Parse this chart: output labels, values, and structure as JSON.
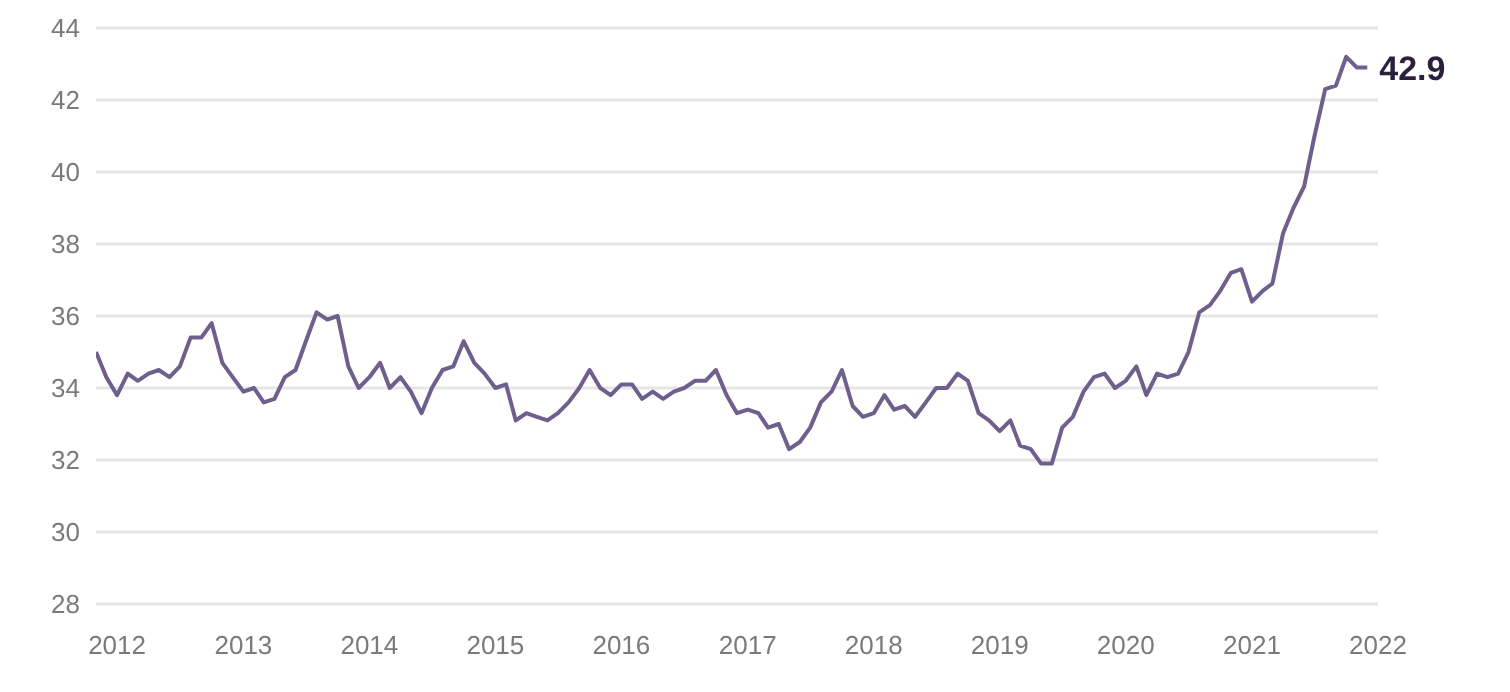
{
  "chart_data": {
    "type": "line",
    "x": [
      "2011-11",
      "2011-12",
      "2012-01",
      "2012-02",
      "2012-03",
      "2012-04",
      "2012-05",
      "2012-06",
      "2012-07",
      "2012-08",
      "2012-09",
      "2012-10",
      "2012-11",
      "2012-12",
      "2013-01",
      "2013-02",
      "2013-03",
      "2013-04",
      "2013-05",
      "2013-06",
      "2013-07",
      "2013-08",
      "2013-09",
      "2013-10",
      "2013-11",
      "2013-12",
      "2014-01",
      "2014-02",
      "2014-03",
      "2014-04",
      "2014-05",
      "2014-06",
      "2014-07",
      "2014-08",
      "2014-09",
      "2014-10",
      "2014-11",
      "2014-12",
      "2015-01",
      "2015-02",
      "2015-03",
      "2015-04",
      "2015-05",
      "2015-06",
      "2015-07",
      "2015-08",
      "2015-09",
      "2015-10",
      "2015-11",
      "2015-12",
      "2016-01",
      "2016-02",
      "2016-03",
      "2016-04",
      "2016-05",
      "2016-06",
      "2016-07",
      "2016-08",
      "2016-09",
      "2016-10",
      "2016-11",
      "2016-12",
      "2017-01",
      "2017-02",
      "2017-03",
      "2017-04",
      "2017-05",
      "2017-06",
      "2017-07",
      "2017-08",
      "2017-09",
      "2017-10",
      "2017-11",
      "2017-12",
      "2018-01",
      "2018-02",
      "2018-03",
      "2018-04",
      "2018-05",
      "2018-06",
      "2018-07",
      "2018-08",
      "2018-09",
      "2018-10",
      "2018-11",
      "2018-12",
      "2019-01",
      "2019-02",
      "2019-03",
      "2019-04",
      "2019-05",
      "2019-06",
      "2019-07",
      "2019-08",
      "2019-09",
      "2019-10",
      "2019-11",
      "2019-12",
      "2020-01",
      "2020-02",
      "2020-03",
      "2020-04",
      "2020-05",
      "2020-06",
      "2020-07",
      "2020-08",
      "2020-09",
      "2020-10",
      "2020-11",
      "2020-12",
      "2021-01",
      "2021-02",
      "2021-03",
      "2021-04",
      "2021-05",
      "2021-06",
      "2021-07",
      "2021-08",
      "2021-09",
      "2021-10",
      "2021-11",
      "2021-12"
    ],
    "series": [
      {
        "color": "#6f5f8c",
        "values": [
          35.0,
          34.3,
          33.8,
          34.4,
          34.2,
          34.4,
          34.5,
          34.3,
          34.6,
          35.4,
          35.4,
          35.8,
          34.7,
          34.3,
          33.9,
          34.0,
          33.6,
          33.7,
          34.3,
          34.5,
          35.3,
          36.1,
          35.9,
          36.0,
          34.6,
          34.0,
          34.3,
          34.7,
          34.0,
          34.3,
          33.9,
          33.3,
          34.0,
          34.5,
          34.6,
          35.3,
          34.7,
          34.4,
          34.0,
          34.1,
          33.1,
          33.3,
          33.2,
          33.1,
          33.3,
          33.6,
          34.0,
          34.5,
          34.0,
          33.8,
          34.1,
          34.1,
          33.7,
          33.9,
          33.7,
          33.9,
          34.0,
          34.2,
          34.2,
          34.5,
          33.8,
          33.3,
          33.4,
          33.3,
          32.9,
          33.0,
          32.3,
          32.5,
          32.9,
          33.6,
          33.9,
          34.5,
          33.5,
          33.2,
          33.3,
          33.8,
          33.4,
          33.5,
          33.2,
          33.6,
          34.0,
          34.0,
          34.4,
          34.2,
          33.3,
          33.1,
          32.8,
          33.1,
          32.4,
          32.3,
          31.9,
          31.9,
          32.9,
          33.2,
          33.9,
          34.3,
          34.4,
          34.0,
          34.2,
          34.6,
          33.8,
          34.4,
          34.3,
          34.4,
          35.0,
          36.1,
          36.3,
          36.7,
          37.2,
          37.3,
          36.4,
          36.7,
          36.9,
          38.3,
          39.0,
          39.6,
          41.0,
          42.3,
          42.4,
          43.2,
          42.9,
          42.9
        ]
      }
    ],
    "xlim": [
      "2011-11",
      "2022-01"
    ],
    "xticks": [
      "2012",
      "2013",
      "2014",
      "2015",
      "2016",
      "2017",
      "2018",
      "2019",
      "2020",
      "2021",
      "2022"
    ],
    "ylim": [
      28,
      44
    ],
    "yticks": [
      28,
      30,
      32,
      34,
      36,
      38,
      40,
      42,
      44
    ],
    "grid": "y",
    "annotations": [
      {
        "text": "42.9",
        "x": "2021-12",
        "y": 42.9
      }
    ]
  }
}
